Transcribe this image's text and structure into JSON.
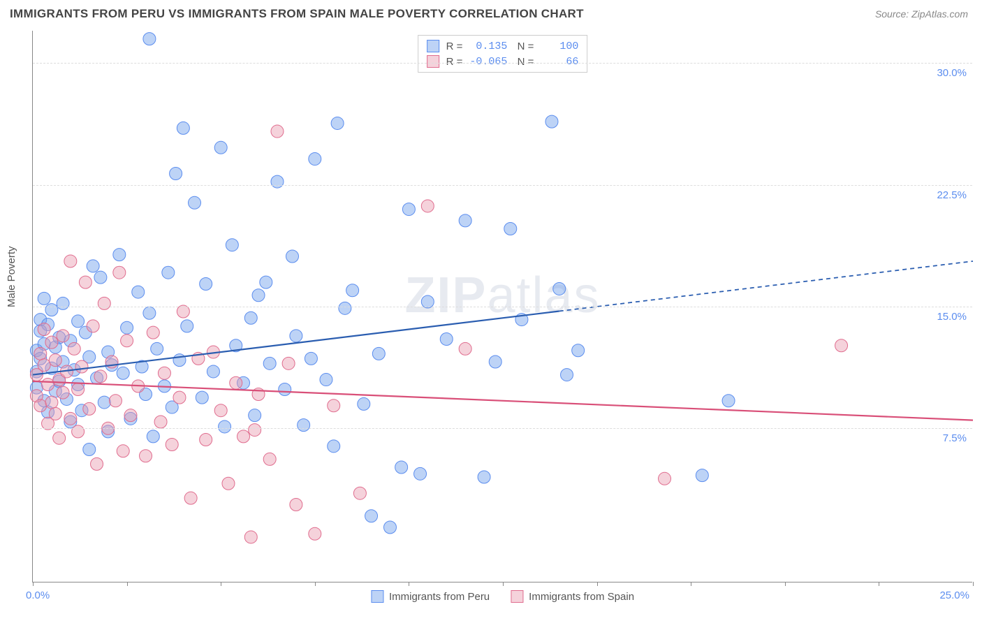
{
  "title": "IMMIGRANTS FROM PERU VS IMMIGRANTS FROM SPAIN MALE POVERTY CORRELATION CHART",
  "source": "Source: ZipAtlas.com",
  "ylabel": "Male Poverty",
  "watermark_bold": "ZIP",
  "watermark_rest": "atlas",
  "chart": {
    "type": "scatter-correlation",
    "background_color": "#ffffff",
    "grid_color": "#dddddd",
    "axis_color": "#888888",
    "tick_label_color": "#5b8def",
    "x_range": [
      0,
      25
    ],
    "y_range": [
      -2,
      32
    ],
    "y_ticks": [
      7.5,
      15.0,
      22.5,
      30.0
    ],
    "y_tick_labels": [
      "7.5%",
      "15.0%",
      "22.5%",
      "30.0%"
    ],
    "x_tick_positions": [
      0,
      2.5,
      5,
      7.5,
      10,
      12.5,
      15,
      17.5,
      20,
      22.5,
      25
    ],
    "x_min_label": "0.0%",
    "x_max_label": "25.0%",
    "marker_radius": 9,
    "marker_opacity": 0.55,
    "line_width": 2.2
  },
  "series": [
    {
      "name": "Immigrants from Peru",
      "color": "#6d9eeb",
      "fill": "rgba(109,158,235,0.45)",
      "stroke": "#5b8def",
      "line_color": "#2a5db0",
      "R": "0.135",
      "N": "100",
      "regression": {
        "x1": 0,
        "y1": 10.8,
        "x2": 25,
        "y2": 17.8,
        "solid_until_x": 14
      },
      "points": [
        [
          0.1,
          11
        ],
        [
          0.1,
          12.3
        ],
        [
          0.1,
          10
        ],
        [
          0.2,
          13.5
        ],
        [
          0.2,
          11.8
        ],
        [
          0.2,
          14.2
        ],
        [
          0.3,
          15.5
        ],
        [
          0.3,
          9.2
        ],
        [
          0.3,
          12.7
        ],
        [
          0.4,
          13.9
        ],
        [
          0.4,
          8.5
        ],
        [
          0.5,
          11.2
        ],
        [
          0.5,
          14.8
        ],
        [
          0.6,
          9.8
        ],
        [
          0.6,
          12.5
        ],
        [
          0.7,
          10.4
        ],
        [
          0.7,
          13.1
        ],
        [
          0.8,
          11.6
        ],
        [
          0.8,
          15.2
        ],
        [
          0.9,
          9.3
        ],
        [
          1.0,
          7.9
        ],
        [
          1.0,
          12.9
        ],
        [
          1.1,
          11.1
        ],
        [
          1.2,
          10.2
        ],
        [
          1.2,
          14.1
        ],
        [
          1.3,
          8.6
        ],
        [
          1.4,
          13.4
        ],
        [
          1.5,
          11.9
        ],
        [
          1.5,
          6.2
        ],
        [
          1.6,
          17.5
        ],
        [
          1.7,
          10.6
        ],
        [
          1.8,
          16.8
        ],
        [
          1.9,
          9.1
        ],
        [
          2.0,
          12.2
        ],
        [
          2.0,
          7.3
        ],
        [
          2.1,
          11.4
        ],
        [
          2.3,
          18.2
        ],
        [
          2.4,
          10.9
        ],
        [
          2.5,
          13.7
        ],
        [
          2.6,
          8.1
        ],
        [
          2.8,
          15.9
        ],
        [
          2.9,
          11.3
        ],
        [
          3.0,
          9.6
        ],
        [
          3.1,
          31.5
        ],
        [
          3.1,
          14.6
        ],
        [
          3.2,
          7.0
        ],
        [
          3.3,
          12.4
        ],
        [
          3.5,
          10.1
        ],
        [
          3.6,
          17.1
        ],
        [
          3.7,
          8.8
        ],
        [
          3.8,
          23.2
        ],
        [
          3.9,
          11.7
        ],
        [
          4.0,
          26.0
        ],
        [
          4.1,
          13.8
        ],
        [
          4.3,
          21.4
        ],
        [
          4.5,
          9.4
        ],
        [
          4.6,
          16.4
        ],
        [
          4.8,
          11.0
        ],
        [
          5.0,
          24.8
        ],
        [
          5.1,
          7.6
        ],
        [
          5.3,
          18.8
        ],
        [
          5.4,
          12.6
        ],
        [
          5.6,
          10.3
        ],
        [
          5.8,
          14.3
        ],
        [
          5.9,
          8.3
        ],
        [
          6.0,
          15.7
        ],
        [
          6.2,
          16.5
        ],
        [
          6.3,
          11.5
        ],
        [
          6.5,
          22.7
        ],
        [
          6.7,
          9.9
        ],
        [
          6.9,
          18.1
        ],
        [
          7.0,
          13.2
        ],
        [
          7.2,
          7.7
        ],
        [
          7.4,
          11.8
        ],
        [
          7.5,
          24.1
        ],
        [
          7.8,
          10.5
        ],
        [
          8.0,
          6.4
        ],
        [
          8.1,
          26.3
        ],
        [
          8.3,
          14.9
        ],
        [
          8.5,
          16.0
        ],
        [
          8.8,
          9.0
        ],
        [
          9.0,
          2.1
        ],
        [
          9.2,
          12.1
        ],
        [
          9.5,
          1.4
        ],
        [
          9.8,
          5.1
        ],
        [
          10.0,
          21.0
        ],
        [
          10.3,
          4.7
        ],
        [
          10.5,
          15.3
        ],
        [
          11.0,
          13.0
        ],
        [
          11.5,
          20.3
        ],
        [
          12.0,
          4.5
        ],
        [
          12.3,
          11.6
        ],
        [
          12.7,
          19.8
        ],
        [
          13.0,
          14.2
        ],
        [
          13.8,
          26.4
        ],
        [
          14.0,
          16.1
        ],
        [
          14.2,
          10.8
        ],
        [
          14.5,
          12.3
        ],
        [
          17.8,
          4.6
        ],
        [
          18.5,
          9.2
        ]
      ]
    },
    {
      "name": "Immigrants from Spain",
      "color": "#e89bb0",
      "fill": "rgba(232,155,176,0.45)",
      "stroke": "#e06c8e",
      "line_color": "#d94f78",
      "R": "-0.065",
      "N": "66",
      "regression": {
        "x1": 0,
        "y1": 10.4,
        "x2": 25,
        "y2": 8.0,
        "solid_until_x": 25
      },
      "points": [
        [
          0.1,
          10.8
        ],
        [
          0.1,
          9.5
        ],
        [
          0.2,
          12.1
        ],
        [
          0.2,
          8.9
        ],
        [
          0.3,
          11.4
        ],
        [
          0.3,
          13.6
        ],
        [
          0.4,
          7.8
        ],
        [
          0.4,
          10.2
        ],
        [
          0.5,
          9.1
        ],
        [
          0.5,
          12.8
        ],
        [
          0.6,
          8.4
        ],
        [
          0.6,
          11.7
        ],
        [
          0.7,
          10.5
        ],
        [
          0.7,
          6.9
        ],
        [
          0.8,
          13.2
        ],
        [
          0.8,
          9.7
        ],
        [
          0.9,
          11.0
        ],
        [
          1.0,
          8.1
        ],
        [
          1.0,
          17.8
        ],
        [
          1.1,
          12.4
        ],
        [
          1.2,
          7.3
        ],
        [
          1.2,
          9.9
        ],
        [
          1.3,
          11.3
        ],
        [
          1.4,
          16.5
        ],
        [
          1.5,
          8.7
        ],
        [
          1.6,
          13.8
        ],
        [
          1.7,
          5.3
        ],
        [
          1.8,
          10.7
        ],
        [
          1.9,
          15.2
        ],
        [
          2.0,
          7.5
        ],
        [
          2.1,
          11.6
        ],
        [
          2.2,
          9.2
        ],
        [
          2.3,
          17.1
        ],
        [
          2.4,
          6.1
        ],
        [
          2.5,
          12.9
        ],
        [
          2.6,
          8.3
        ],
        [
          2.8,
          10.1
        ],
        [
          3.0,
          5.8
        ],
        [
          3.2,
          13.4
        ],
        [
          3.4,
          7.9
        ],
        [
          3.5,
          10.9
        ],
        [
          3.7,
          6.5
        ],
        [
          3.9,
          9.4
        ],
        [
          4.0,
          14.7
        ],
        [
          4.2,
          3.2
        ],
        [
          4.4,
          11.8
        ],
        [
          4.6,
          6.8
        ],
        [
          4.8,
          12.2
        ],
        [
          5.0,
          8.6
        ],
        [
          5.2,
          4.1
        ],
        [
          5.4,
          10.3
        ],
        [
          5.6,
          7.0
        ],
        [
          5.8,
          0.8
        ],
        [
          5.9,
          7.4
        ],
        [
          6.0,
          9.6
        ],
        [
          6.3,
          5.6
        ],
        [
          6.5,
          25.8
        ],
        [
          6.8,
          11.5
        ],
        [
          7.0,
          2.8
        ],
        [
          7.5,
          1.0
        ],
        [
          8.0,
          8.9
        ],
        [
          10.5,
          21.2
        ],
        [
          11.5,
          12.4
        ],
        [
          16.8,
          4.4
        ],
        [
          21.5,
          12.6
        ],
        [
          8.7,
          3.5
        ]
      ]
    }
  ],
  "legend": {
    "bottom": [
      {
        "label": "Immigrants from Peru",
        "fill": "rgba(109,158,235,0.45)",
        "border": "#5b8def"
      },
      {
        "label": "Immigrants from Spain",
        "fill": "rgba(232,155,176,0.45)",
        "border": "#e06c8e"
      }
    ]
  }
}
